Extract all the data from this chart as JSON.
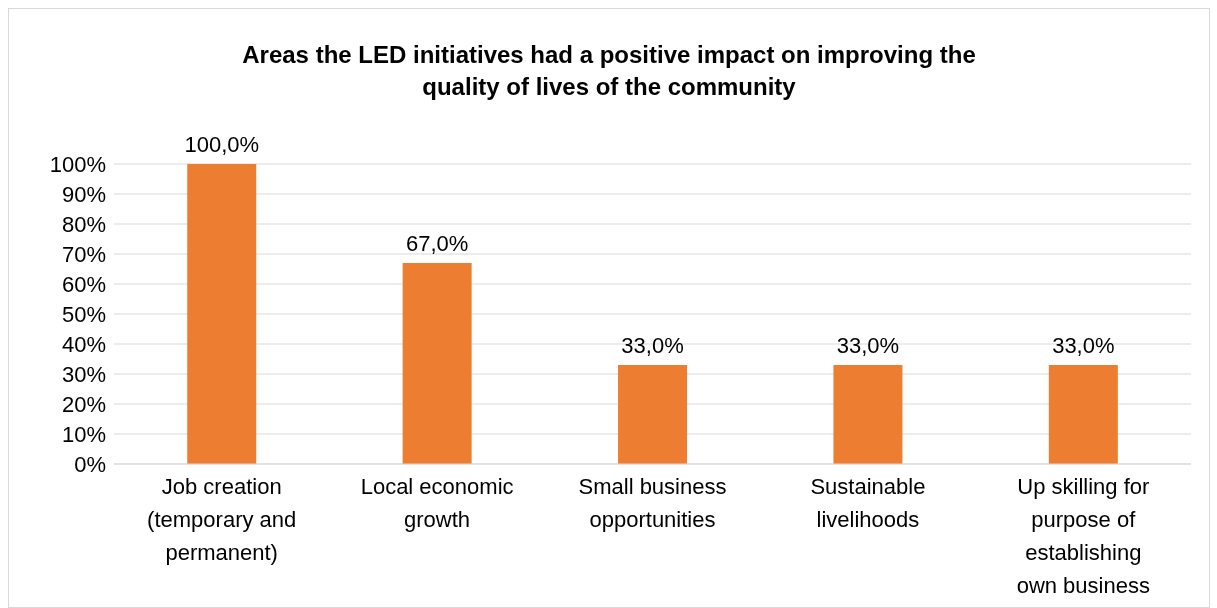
{
  "chart_data": {
    "type": "bar",
    "title": "Areas the LED initiatives had a positive impact on improving the quality of lives of the community",
    "categories": [
      "Job creation (temporary and permanent)",
      "Local economic growth",
      "Small business opportunities",
      "Sustainable livelihoods",
      "Up skilling for purpose of establishing own business"
    ],
    "values": [
      100,
      67,
      33,
      33,
      33
    ],
    "value_labels": [
      "100,0%",
      "67,0%",
      "33,0%",
      "33,0%",
      "33,0%"
    ],
    "color": "#ed7d31",
    "ylim": [
      0,
      100
    ],
    "yticks": [
      {
        "value": 0,
        "label": "0%"
      },
      {
        "value": 10,
        "label": "10%"
      },
      {
        "value": 20,
        "label": "20%"
      },
      {
        "value": 30,
        "label": "30%"
      },
      {
        "value": 40,
        "label": "40%"
      },
      {
        "value": 50,
        "label": "50%"
      },
      {
        "value": 60,
        "label": "60%"
      },
      {
        "value": 70,
        "label": "70%"
      },
      {
        "value": 80,
        "label": "80%"
      },
      {
        "value": 90,
        "label": "90%"
      },
      {
        "value": 100,
        "label": "100%"
      }
    ],
    "grid": "y"
  }
}
